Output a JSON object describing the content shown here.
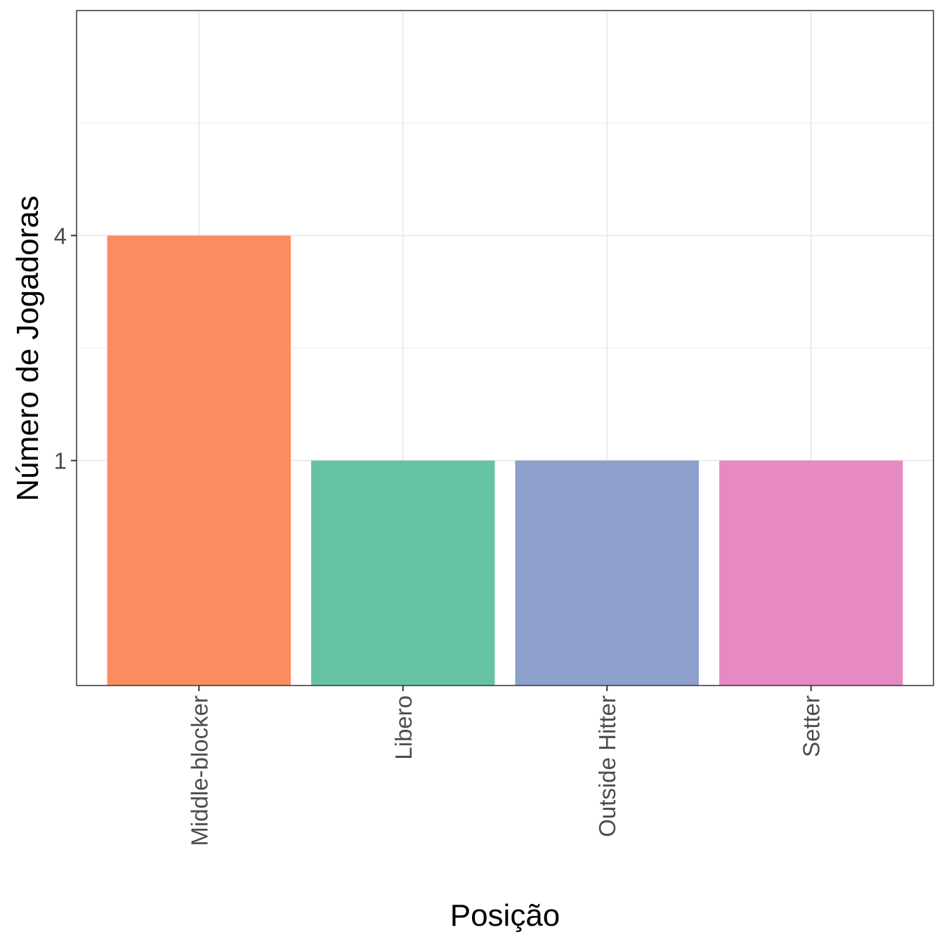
{
  "chart_data": {
    "type": "bar",
    "categories": [
      "Middle-blocker",
      "Libero",
      "Outside Hitter",
      "Setter"
    ],
    "values": [
      4,
      1,
      1,
      1
    ],
    "colors": [
      "#fc8d62",
      "#66c2a5",
      "#8da0cb",
      "#e78ac3"
    ],
    "title": "",
    "xlabel": "Posição",
    "ylabel": "Número de Jogadoras",
    "y_scale": "log",
    "yticks": [
      1,
      4
    ],
    "ytick_labels": [
      "1",
      "4"
    ],
    "ylim": [
      0.25,
      16
    ],
    "bar_base": 0.25,
    "grid": true,
    "legend": "none"
  }
}
